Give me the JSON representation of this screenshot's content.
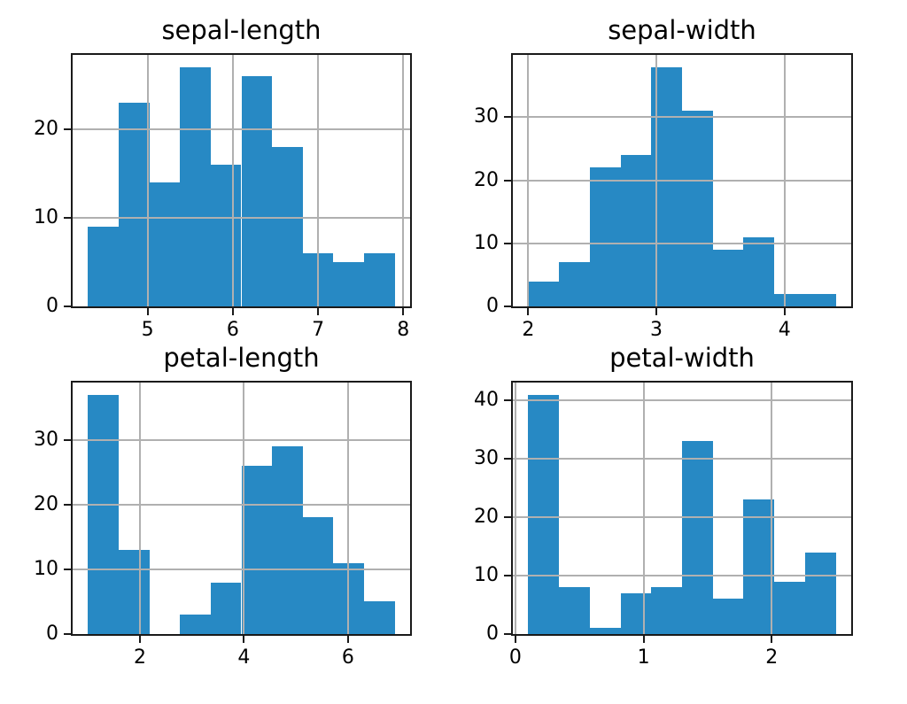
{
  "figure": {
    "background": "#ffffff"
  },
  "style": {
    "bar_color": "#2789c4",
    "grid_color": "#b0b0b0",
    "spine_color": "#1a1a1a",
    "text_color": "#000000"
  },
  "chart_data": [
    {
      "type": "bar",
      "subtype": "histogram",
      "title": "sepal-length",
      "bins": 10,
      "bin_start": 4.3,
      "bin_end": 7.9,
      "counts": [
        9,
        23,
        14,
        27,
        16,
        26,
        18,
        6,
        5,
        6
      ],
      "xticks": [
        5,
        6,
        7,
        8
      ],
      "yticks": [
        0,
        10,
        20
      ],
      "xlim": [
        4.12,
        8.08
      ],
      "ylim": [
        0,
        28.35
      ],
      "grid": true,
      "legend": false
    },
    {
      "type": "bar",
      "subtype": "histogram",
      "title": "sepal-width",
      "bins": 10,
      "bin_start": 2.0,
      "bin_end": 4.4,
      "counts": [
        4,
        7,
        22,
        24,
        38,
        31,
        9,
        11,
        2,
        2
      ],
      "xticks": [
        2,
        3,
        4
      ],
      "yticks": [
        0,
        10,
        20,
        30
      ],
      "xlim": [
        1.88,
        4.52
      ],
      "ylim": [
        0,
        39.9
      ],
      "grid": true,
      "legend": false
    },
    {
      "type": "bar",
      "subtype": "histogram",
      "title": "petal-length",
      "bins": 10,
      "bin_start": 1.0,
      "bin_end": 6.9,
      "counts": [
        37,
        13,
        0,
        3,
        8,
        26,
        29,
        18,
        11,
        5
      ],
      "xticks": [
        2,
        4,
        6
      ],
      "yticks": [
        0,
        10,
        20,
        30
      ],
      "xlim": [
        0.705,
        7.195
      ],
      "ylim": [
        0,
        38.85
      ],
      "grid": true,
      "legend": false
    },
    {
      "type": "bar",
      "subtype": "histogram",
      "title": "petal-width",
      "bins": 10,
      "bin_start": 0.1,
      "bin_end": 2.5,
      "counts": [
        41,
        8,
        1,
        7,
        8,
        33,
        6,
        23,
        9,
        14
      ],
      "xticks": [
        0,
        1,
        2
      ],
      "yticks": [
        0,
        10,
        20,
        30,
        40
      ],
      "xlim": [
        -0.02,
        2.62
      ],
      "ylim": [
        0,
        43.05
      ],
      "grid": true,
      "legend": false
    }
  ]
}
